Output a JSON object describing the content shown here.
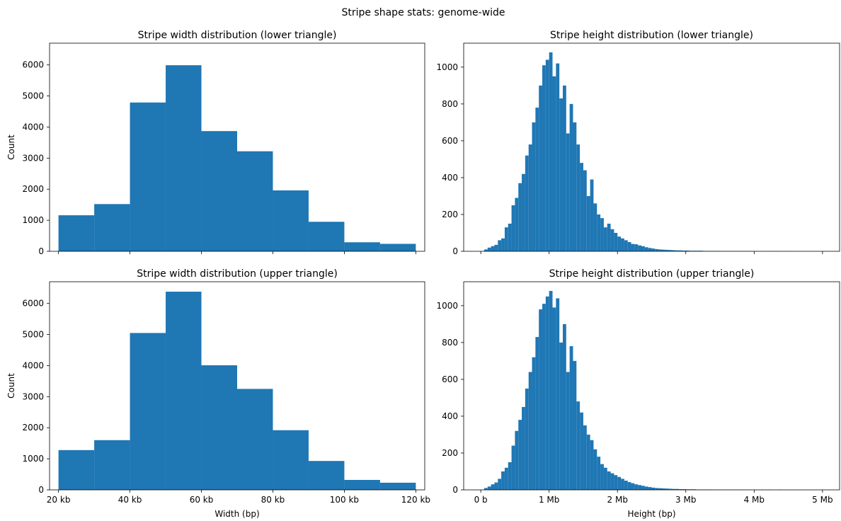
{
  "figure": {
    "suptitle": "Stripe shape stats: genome-wide",
    "bar_color": "#1f77b4"
  },
  "chart_data": [
    {
      "type": "bar",
      "title": "Stripe width distribution (lower triangle)",
      "xlabel": "",
      "ylabel": "Count",
      "xlim": [
        17500,
        122500
      ],
      "ylim": [
        0,
        6700
      ],
      "yticks": [
        0,
        1000,
        2000,
        3000,
        4000,
        5000,
        6000
      ],
      "xticks": [
        20000,
        40000,
        60000,
        80000,
        100000,
        120000
      ],
      "xtick_labels": [],
      "bin_edges": [
        20000,
        30000,
        40000,
        50000,
        60000,
        70000,
        80000,
        90000,
        100000,
        110000,
        120000
      ],
      "values": [
        1160,
        1520,
        4790,
        5990,
        3870,
        3220,
        1960,
        950,
        290,
        240
      ]
    },
    {
      "type": "bar",
      "title": "Stripe height distribution (lower triangle)",
      "xlabel": "",
      "ylabel": "",
      "xlim": [
        -250000,
        5250000
      ],
      "ylim": [
        0,
        1130
      ],
      "yticks": [
        0,
        200,
        400,
        600,
        800,
        1000
      ],
      "xticks": [
        0,
        1000000,
        2000000,
        3000000,
        4000000,
        5000000
      ],
      "xtick_labels": [],
      "bin_start": 0,
      "bin_width": 50000,
      "values": [
        0,
        10,
        20,
        28,
        35,
        60,
        70,
        130,
        150,
        250,
        290,
        370,
        420,
        520,
        580,
        700,
        780,
        900,
        1010,
        1040,
        1080,
        950,
        1020,
        830,
        900,
        640,
        800,
        700,
        580,
        480,
        440,
        300,
        390,
        260,
        200,
        180,
        130,
        150,
        120,
        100,
        80,
        70,
        60,
        50,
        40,
        38,
        32,
        28,
        22,
        18,
        15,
        12,
        10,
        9,
        8,
        7,
        6,
        5,
        5,
        4,
        4,
        3,
        3,
        3,
        3,
        2,
        2,
        2,
        2,
        2,
        1,
        1,
        1,
        1,
        1,
        1,
        1,
        1,
        1,
        1,
        1,
        0,
        1,
        0,
        1,
        0,
        1,
        0,
        0,
        1,
        0,
        0,
        0,
        0,
        0,
        0,
        0,
        0,
        0,
        0
      ]
    },
    {
      "type": "bar",
      "title": "Stripe width distribution (upper triangle)",
      "xlabel": "Width (bp)",
      "ylabel": "Count",
      "xlim": [
        17500,
        122500
      ],
      "ylim": [
        0,
        6700
      ],
      "yticks": [
        0,
        1000,
        2000,
        3000,
        4000,
        5000,
        6000
      ],
      "xticks": [
        20000,
        40000,
        60000,
        80000,
        100000,
        120000
      ],
      "xtick_labels": [
        "20 kb",
        "40 kb",
        "60 kb",
        "80 kb",
        "100 kb",
        "120 kb"
      ],
      "bin_edges": [
        20000,
        30000,
        40000,
        50000,
        60000,
        70000,
        80000,
        90000,
        100000,
        110000,
        120000
      ],
      "values": [
        1280,
        1600,
        5050,
        6380,
        4010,
        3250,
        1920,
        930,
        320,
        230
      ]
    },
    {
      "type": "bar",
      "title": "Stripe height distribution (upper triangle)",
      "xlabel": "Height (bp)",
      "ylabel": "",
      "xlim": [
        -250000,
        5250000
      ],
      "ylim": [
        0,
        1130
      ],
      "yticks": [
        0,
        200,
        400,
        600,
        800,
        1000
      ],
      "xticks": [
        0,
        1000000,
        2000000,
        3000000,
        4000000,
        5000000
      ],
      "xtick_labels": [
        "0 b",
        "1 Mb",
        "2 Mb",
        "3 Mb",
        "4 Mb",
        "5 Mb"
      ],
      "bin_start": 0,
      "bin_width": 50000,
      "values": [
        0,
        10,
        18,
        30,
        40,
        60,
        100,
        120,
        150,
        240,
        320,
        380,
        450,
        550,
        640,
        720,
        830,
        980,
        1010,
        1050,
        1080,
        990,
        1040,
        800,
        900,
        640,
        780,
        700,
        480,
        420,
        350,
        300,
        270,
        220,
        180,
        140,
        120,
        100,
        90,
        80,
        70,
        60,
        50,
        42,
        36,
        30,
        26,
        22,
        18,
        15,
        12,
        10,
        9,
        8,
        7,
        6,
        5,
        5,
        4,
        4,
        3,
        3,
        3,
        2,
        2,
        2,
        2,
        2,
        1,
        1,
        1,
        1,
        1,
        1,
        1,
        1,
        1,
        1,
        1,
        0,
        1,
        0,
        1,
        0,
        1,
        0,
        0,
        1,
        0,
        0,
        0,
        0,
        0,
        0,
        0,
        0,
        0,
        0,
        0,
        0
      ]
    }
  ]
}
